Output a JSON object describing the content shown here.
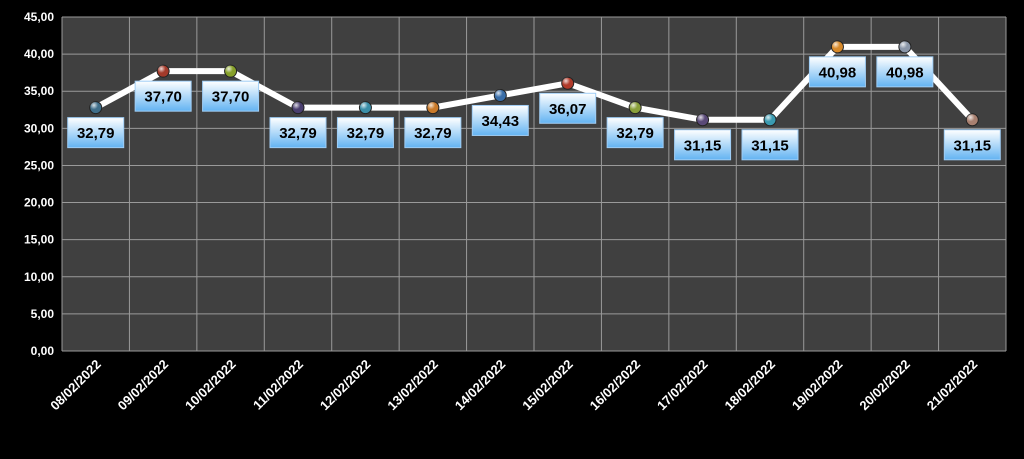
{
  "chart_data": {
    "type": "line",
    "title": "",
    "xlabel": "",
    "ylabel": "",
    "ylim": [
      0,
      45
    ],
    "y_ticks": [
      "0,00",
      "5,00",
      "10,00",
      "15,00",
      "20,00",
      "25,00",
      "30,00",
      "35,00",
      "40,00",
      "45,00"
    ],
    "categories": [
      "08/02/2022",
      "09/02/2022",
      "10/02/2022",
      "11/02/2022",
      "12/02/2022",
      "13/02/2022",
      "14/02/2022",
      "15/02/2022",
      "16/02/2022",
      "17/02/2022",
      "18/02/2022",
      "19/02/2022",
      "20/02/2022",
      "21/02/2022"
    ],
    "values": [
      32.79,
      37.7,
      37.7,
      32.79,
      32.79,
      32.79,
      34.43,
      36.07,
      32.79,
      31.15,
      31.15,
      40.98,
      40.98,
      31.15
    ],
    "data_labels": [
      "32,79",
      "37,70",
      "37,70",
      "32,79",
      "32,79",
      "32,79",
      "34,43",
      "36,07",
      "32,79",
      "31,15",
      "31,15",
      "40,98",
      "40,98",
      "31,15"
    ],
    "label_position": [
      "below",
      "below",
      "below",
      "below",
      "below",
      "below",
      "below",
      "below",
      "below",
      "below",
      "below",
      "below",
      "below",
      "below"
    ],
    "grid": true,
    "legend": "none",
    "colors": {
      "background": "#000000",
      "plot_area": "#404040",
      "grid": "#9a9a9a",
      "line": "#ffffff",
      "label_fill_top": "#ffffff",
      "label_fill_bottom": "#63b3f2",
      "marker_colors": [
        "#3f6e8a",
        "#a33a2a",
        "#87a02a",
        "#4a3f70",
        "#3a8ea8",
        "#c97a2a",
        "#3a6ea8",
        "#b03a2a",
        "#8aa03a",
        "#5a4a78",
        "#3a9ab0",
        "#d88a2a",
        "#8a96a8",
        "#a88070"
      ]
    }
  }
}
